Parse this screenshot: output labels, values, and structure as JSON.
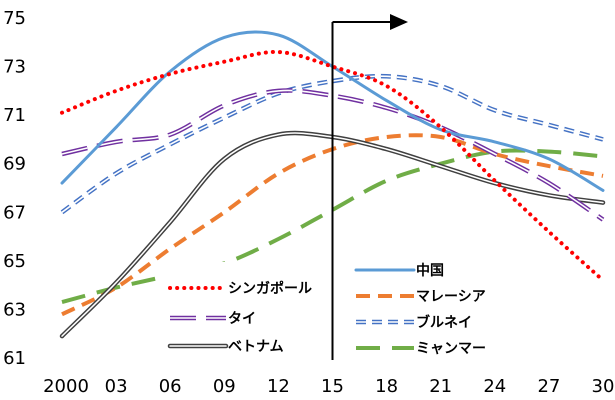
{
  "chart_data": {
    "type": "line",
    "title": "",
    "xlabel": "",
    "ylabel": "",
    "x": [
      2000,
      2003,
      2006,
      2009,
      2012,
      2015,
      2018,
      2021,
      2024,
      2027,
      2030
    ],
    "x_tick_labels": [
      "2000",
      "03",
      "06",
      "09",
      "12",
      "15",
      "18",
      "21",
      "24",
      "27",
      "30"
    ],
    "y_ticks": [
      61,
      63,
      65,
      67,
      69,
      71,
      73,
      75
    ],
    "ylim": [
      61,
      75
    ],
    "xlim": [
      2000,
      2030
    ],
    "grid": false,
    "marker_year": 2015,
    "series": [
      {
        "name": "シンガポール",
        "style": "dotted",
        "color": "#ff0000",
        "values": [
          71.1,
          72.0,
          72.7,
          73.2,
          73.6,
          73.0,
          72.2,
          70.5,
          68.3,
          66.2,
          64.2
        ]
      },
      {
        "name": "タイ",
        "style": "double-dash",
        "color": "#7030a0",
        "values": [
          69.4,
          69.9,
          70.2,
          71.4,
          72.0,
          71.8,
          71.3,
          70.5,
          69.4,
          68.2,
          66.7
        ]
      },
      {
        "name": "ベトナム",
        "style": "double",
        "color": "#404040",
        "values": [
          61.9,
          64.1,
          66.6,
          69.2,
          70.2,
          70.1,
          69.6,
          68.9,
          68.2,
          67.7,
          67.4
        ]
      },
      {
        "name": "中国",
        "style": "solid",
        "color": "#5b9bd5",
        "values": [
          68.2,
          70.5,
          72.8,
          74.2,
          74.3,
          73.0,
          71.6,
          70.4,
          69.9,
          69.2,
          67.9
        ]
      },
      {
        "name": "マレーシア",
        "style": "dashed",
        "color": "#ed7d31",
        "values": [
          62.8,
          63.9,
          65.5,
          67.0,
          68.6,
          69.6,
          70.1,
          70.1,
          69.4,
          68.9,
          68.5
        ]
      },
      {
        "name": "ブルネイ",
        "style": "double-dash",
        "color": "#4472c4",
        "values": [
          67.0,
          68.6,
          69.8,
          70.9,
          71.9,
          72.4,
          72.6,
          72.2,
          71.2,
          70.6,
          70.0
        ]
      },
      {
        "name": "ミャンマー",
        "style": "long-dash",
        "color": "#70ad47",
        "values": [
          63.3,
          63.9,
          64.4,
          64.9,
          65.9,
          67.1,
          68.3,
          69.0,
          69.5,
          69.5,
          69.3
        ]
      }
    ],
    "legend": {
      "placement": "bottom-center"
    }
  }
}
